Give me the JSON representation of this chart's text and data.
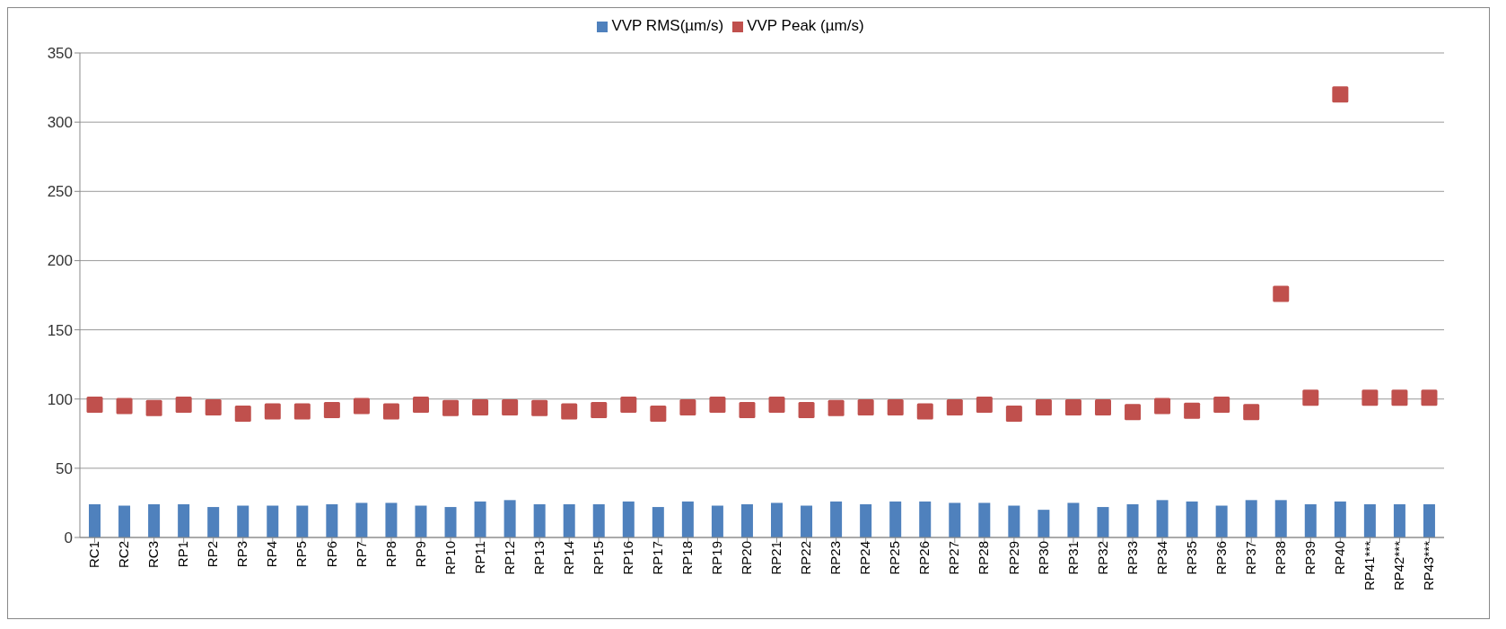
{
  "chart_data": {
    "type": "bar",
    "categories": [
      "RC1",
      "RC2",
      "RC3",
      "RP1",
      "RP2",
      "RP3",
      "RP4",
      "RP5",
      "RP6",
      "RP7",
      "RP8",
      "RP9",
      "RP10",
      "RP11",
      "RP12",
      "RP13",
      "RP14",
      "RP15",
      "RP16",
      "RP17",
      "RP18",
      "RP19",
      "RP20",
      "RP21",
      "RP22",
      "RP23",
      "RP24",
      "RP25",
      "RP26",
      "RP27",
      "RP28",
      "RP29",
      "RP30",
      "RP31",
      "RP32",
      "RP33",
      "RP34",
      "RP35",
      "RP36",
      "RP37",
      "RP38",
      "RP39",
      "RP40",
      "RP41***",
      "RP42***",
      "RP43***"
    ],
    "series": [
      {
        "name": "VVP RMS(µm/s)",
        "color": "#4f81bd",
        "values": [
          24,
          23,
          24,
          24,
          22,
          23,
          23,
          23,
          24,
          25,
          25,
          23,
          22,
          26,
          27,
          24,
          24,
          24,
          26,
          22,
          26,
          23,
          24,
          25,
          23,
          26,
          24,
          26,
          26,
          25,
          25,
          23,
          20,
          25,
          22,
          24,
          27,
          26,
          23,
          27,
          27,
          24,
          26,
          24,
          24,
          24
        ]
      },
      {
        "name": "VVP Peak (µm/s)",
        "type": "scatter",
        "color": "#c0504d",
        "values": [
          96,
          95,
          93.5,
          96,
          94,
          89.5,
          91,
          91,
          92,
          95,
          91,
          96,
          93.5,
          94,
          94,
          93.5,
          91,
          92,
          96,
          89.5,
          94,
          96,
          92,
          96,
          92,
          93.5,
          94,
          94,
          91,
          94,
          96,
          89.5,
          94,
          94,
          94,
          90.5,
          95,
          91.5,
          96,
          90.5,
          176,
          101,
          320,
          101,
          101,
          101
        ]
      }
    ],
    "ylim": [
      0,
      350
    ],
    "yticks": [
      0,
      50,
      100,
      150,
      200,
      250,
      300,
      350
    ],
    "grid": "y",
    "legend": "top",
    "marker": "square"
  }
}
